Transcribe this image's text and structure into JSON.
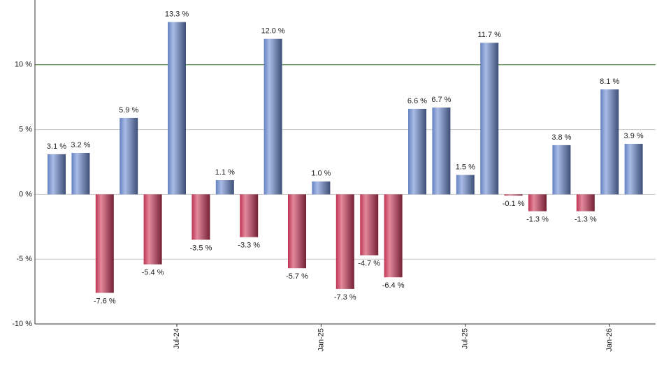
{
  "chart_data": {
    "type": "bar",
    "categories": [
      null,
      null,
      null,
      null,
      null,
      "Jul-24",
      null,
      null,
      null,
      null,
      null,
      "Jan-25",
      null,
      null,
      null,
      null,
      null,
      "Jul-25",
      null,
      null,
      null,
      null,
      null,
      "Jan-26",
      null
    ],
    "values": [
      3.1,
      3.2,
      -7.6,
      5.9,
      -5.4,
      13.3,
      -3.5,
      1.1,
      -3.3,
      12.0,
      -5.7,
      1.0,
      -7.3,
      -4.7,
      -6.4,
      6.6,
      6.7,
      1.5,
      11.7,
      -0.1,
      -1.3,
      3.8,
      -1.3,
      8.1,
      3.9
    ],
    "value_labels": [
      "3.1 %",
      "3.2 %",
      "-7.6 %",
      "5.9 %",
      "-5.4 %",
      "13.3 %",
      "-3.5 %",
      "1.1 %",
      "-3.3 %",
      "12.0 %",
      "-5.7 %",
      "1.0 %",
      "-7.3 %",
      "-4.7 %",
      "-6.4 %",
      "6.6 %",
      "6.7 %",
      "1.5 %",
      "11.7 %",
      "-0.1 %",
      "-1.3 %",
      "3.8 %",
      "-1.3 %",
      "8.1 %",
      "3.9 %"
    ],
    "positive_color": "#6f8fd6",
    "negative_color": "#d23a5c",
    "ylim": [
      -10,
      15
    ],
    "yticks": [
      {
        "value": -10,
        "label": "-10 %"
      },
      {
        "value": -5,
        "label": "-5 %"
      },
      {
        "value": 0,
        "label": "0 %"
      },
      {
        "value": 5,
        "label": "5 %"
      },
      {
        "value": 10,
        "label": "10 %"
      }
    ],
    "grid": true,
    "highlight_line": {
      "value": 10,
      "color": "#2e6b1e"
    }
  }
}
